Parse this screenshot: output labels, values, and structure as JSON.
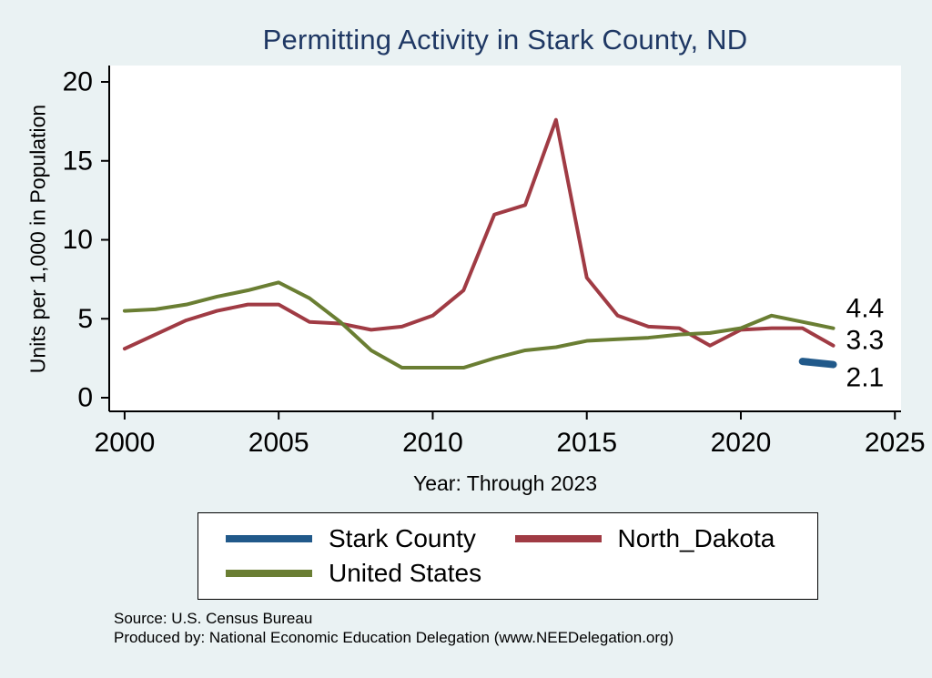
{
  "chart_data": {
    "type": "line",
    "title": "Permitting Activity in Stark County, ND",
    "ylabel": "Units per 1,000 in Population",
    "xlabel": "Year: Through 2023",
    "xlim": [
      1999.5,
      2025.2
    ],
    "ylim": [
      0,
      20
    ],
    "yticks": [
      0,
      5,
      10,
      15,
      20
    ],
    "xticks": [
      2000,
      2005,
      2010,
      2015,
      2020,
      2025
    ],
    "grid": false,
    "legend_position": "bottom",
    "series": [
      {
        "name": "Stark County",
        "color": "#21598a",
        "line_width": 8,
        "x": [
          2022,
          2023
        ],
        "values": [
          2.3,
          2.1
        ],
        "end_label": "2.1",
        "label_dy": 14
      },
      {
        "name": "North_Dakota",
        "color": "#a03b44",
        "line_width": 4,
        "x": [
          2000,
          2001,
          2002,
          2003,
          2004,
          2005,
          2006,
          2007,
          2008,
          2009,
          2010,
          2011,
          2012,
          2013,
          2014,
          2015,
          2016,
          2017,
          2018,
          2019,
          2020,
          2021,
          2022,
          2023
        ],
        "values": [
          3.1,
          4.0,
          4.9,
          5.5,
          5.9,
          5.9,
          4.8,
          4.7,
          4.3,
          4.5,
          5.2,
          6.8,
          11.6,
          12.2,
          17.6,
          7.6,
          5.2,
          4.5,
          4.4,
          3.3,
          4.3,
          4.4,
          4.4,
          3.3
        ],
        "end_label": "3.3",
        "label_dy": -6
      },
      {
        "name": "United States",
        "color": "#6a7e33",
        "line_width": 4,
        "x": [
          2000,
          2001,
          2002,
          2003,
          2004,
          2005,
          2006,
          2007,
          2008,
          2009,
          2010,
          2011,
          2012,
          2013,
          2014,
          2015,
          2016,
          2017,
          2018,
          2019,
          2020,
          2021,
          2022,
          2023
        ],
        "values": [
          5.5,
          5.6,
          5.9,
          6.4,
          6.8,
          7.3,
          6.3,
          4.8,
          3.0,
          1.9,
          1.9,
          1.9,
          2.5,
          3.0,
          3.2,
          3.6,
          3.7,
          3.8,
          4.0,
          4.1,
          4.4,
          5.2,
          4.8,
          4.4
        ],
        "end_label": "4.4",
        "label_dy": -22
      }
    ],
    "notes": [
      "Source: U.S. Census Bureau",
      "Produced by: National Economic Education Delegation (www.NEEDelegation.org)"
    ]
  },
  "legend": {
    "items": [
      {
        "label": "Stark County",
        "color": "#21598a"
      },
      {
        "label": "North_Dakota",
        "color": "#a03b44"
      },
      {
        "label": "United States",
        "color": "#6a7e33"
      }
    ]
  },
  "colors": {
    "background": "#eaf2f3",
    "title": "#1f3864",
    "axis": "#000000",
    "plot_background": "#ffffff"
  }
}
